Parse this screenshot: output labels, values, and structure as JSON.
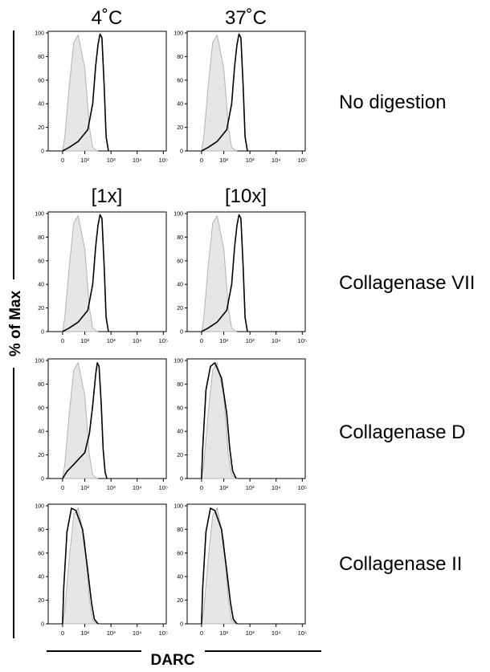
{
  "figure": {
    "column_headers": [
      "4˚C",
      "37˚C"
    ],
    "subheaders": [
      "[1x]",
      "[10x]"
    ],
    "y_axis_label": "% of Max",
    "x_axis_label": "DARC",
    "row_labels": [
      "No digestion",
      "Collagenase VII",
      "Collagenase D",
      "Collagenase II"
    ],
    "colors": {
      "control_fill": "#e6e6e6",
      "control_line": "#b3b3b3",
      "stain_line": "#000000"
    }
  },
  "chart_data": [
    {
      "type": "histogram",
      "row": "No digestion",
      "column": "4˚C",
      "xscale": "biexponential",
      "xticks": [
        "0",
        "10²",
        "10³",
        "10⁴",
        "10⁵"
      ],
      "yticks": [
        "0",
        "20",
        "40",
        "60",
        "80",
        "100"
      ],
      "ylim": [
        0,
        100
      ],
      "series": [
        {
          "role": "control",
          "values": [
            [
              0,
              0
            ],
            [
              10,
              12
            ],
            [
              30,
              55
            ],
            [
              50,
              92
            ],
            [
              70,
              98
            ],
            [
              100,
              70
            ],
            [
              150,
              20
            ],
            [
              200,
              3
            ],
            [
              300,
              0
            ]
          ]
        },
        {
          "role": "stain",
          "values": [
            [
              0,
              0
            ],
            [
              30,
              3
            ],
            [
              70,
              8
            ],
            [
              130,
              18
            ],
            [
              200,
              40
            ],
            [
              260,
              72
            ],
            [
              320,
              90
            ],
            [
              380,
              99
            ],
            [
              450,
              96
            ],
            [
              550,
              55
            ],
            [
              650,
              12
            ],
            [
              800,
              0
            ]
          ]
        }
      ]
    },
    {
      "type": "histogram",
      "row": "No digestion",
      "column": "37˚C",
      "xscale": "biexponential",
      "xticks": [
        "0",
        "10²",
        "10³",
        "10⁴",
        "10⁵"
      ],
      "yticks": [
        "0",
        "20",
        "40",
        "60",
        "80",
        "100"
      ],
      "ylim": [
        0,
        100
      ],
      "series": [
        {
          "role": "control",
          "values": [
            [
              0,
              0
            ],
            [
              10,
              12
            ],
            [
              30,
              55
            ],
            [
              50,
              92
            ],
            [
              70,
              98
            ],
            [
              100,
              70
            ],
            [
              150,
              20
            ],
            [
              200,
              3
            ],
            [
              300,
              0
            ]
          ]
        },
        {
          "role": "stain",
          "values": [
            [
              0,
              0
            ],
            [
              30,
              3
            ],
            [
              70,
              8
            ],
            [
              130,
              18
            ],
            [
              200,
              40
            ],
            [
              260,
              72
            ],
            [
              320,
              90
            ],
            [
              380,
              99
            ],
            [
              450,
              96
            ],
            [
              550,
              55
            ],
            [
              650,
              12
            ],
            [
              800,
              0
            ]
          ]
        }
      ]
    },
    {
      "type": "histogram",
      "row": "Collagenase VII",
      "column": "[1x]",
      "xscale": "biexponential",
      "xticks": [
        "0",
        "10²",
        "10³",
        "10⁴",
        "10⁵"
      ],
      "yticks": [
        "0",
        "20",
        "40",
        "60",
        "80",
        "100"
      ],
      "ylim": [
        0,
        100
      ],
      "series": [
        {
          "role": "control",
          "values": [
            [
              0,
              0
            ],
            [
              10,
              12
            ],
            [
              30,
              55
            ],
            [
              50,
              92
            ],
            [
              70,
              98
            ],
            [
              100,
              70
            ],
            [
              150,
              20
            ],
            [
              200,
              3
            ],
            [
              300,
              0
            ]
          ]
        },
        {
          "role": "stain",
          "values": [
            [
              0,
              0
            ],
            [
              30,
              3
            ],
            [
              70,
              8
            ],
            [
              130,
              18
            ],
            [
              200,
              40
            ],
            [
              260,
              72
            ],
            [
              320,
              90
            ],
            [
              380,
              99
            ],
            [
              450,
              96
            ],
            [
              550,
              55
            ],
            [
              650,
              12
            ],
            [
              800,
              0
            ]
          ]
        }
      ]
    },
    {
      "type": "histogram",
      "row": "Collagenase VII",
      "column": "[10x]",
      "xscale": "biexponential",
      "xticks": [
        "0",
        "10²",
        "10³",
        "10⁴",
        "10⁵"
      ],
      "yticks": [
        "0",
        "20",
        "40",
        "60",
        "80",
        "100"
      ],
      "ylim": [
        0,
        100
      ],
      "series": [
        {
          "role": "control",
          "values": [
            [
              0,
              0
            ],
            [
              10,
              12
            ],
            [
              30,
              55
            ],
            [
              50,
              92
            ],
            [
              70,
              98
            ],
            [
              100,
              70
            ],
            [
              150,
              20
            ],
            [
              200,
              3
            ],
            [
              300,
              0
            ]
          ]
        },
        {
          "role": "stain",
          "values": [
            [
              0,
              0
            ],
            [
              30,
              3
            ],
            [
              70,
              8
            ],
            [
              130,
              18
            ],
            [
              200,
              40
            ],
            [
              260,
              72
            ],
            [
              320,
              90
            ],
            [
              380,
              99
            ],
            [
              450,
              96
            ],
            [
              550,
              55
            ],
            [
              650,
              12
            ],
            [
              800,
              0
            ]
          ]
        }
      ]
    },
    {
      "type": "histogram",
      "row": "Collagenase D",
      "column": "[1x]",
      "xscale": "biexponential",
      "xticks": [
        "0",
        "10²",
        "10³",
        "10⁴",
        "10⁵"
      ],
      "yticks": [
        "0",
        "20",
        "40",
        "60",
        "80",
        "100"
      ],
      "ylim": [
        0,
        100
      ],
      "series": [
        {
          "role": "control",
          "values": [
            [
              0,
              0
            ],
            [
              10,
              12
            ],
            [
              30,
              55
            ],
            [
              50,
              92
            ],
            [
              70,
              98
            ],
            [
              100,
              70
            ],
            [
              150,
              20
            ],
            [
              200,
              3
            ],
            [
              300,
              0
            ]
          ]
        },
        {
          "role": "stain",
          "values": [
            [
              0,
              0
            ],
            [
              20,
              6
            ],
            [
              50,
              12
            ],
            [
              100,
              22
            ],
            [
              150,
              38
            ],
            [
              200,
              62
            ],
            [
              260,
              88
            ],
            [
              300,
              98
            ],
            [
              350,
              95
            ],
            [
              420,
              65
            ],
            [
              500,
              25
            ],
            [
              600,
              5
            ],
            [
              700,
              0
            ]
          ]
        }
      ]
    },
    {
      "type": "histogram",
      "row": "Collagenase D",
      "column": "[10x]",
      "xscale": "biexponential",
      "xticks": [
        "0",
        "10²",
        "10³",
        "10⁴",
        "10⁵"
      ],
      "yticks": [
        "0",
        "20",
        "40",
        "60",
        "80",
        "100"
      ],
      "ylim": [
        0,
        100
      ],
      "series": [
        {
          "role": "control",
          "values": [
            [
              0,
              0
            ],
            [
              10,
              12
            ],
            [
              30,
              55
            ],
            [
              50,
              92
            ],
            [
              70,
              98
            ],
            [
              100,
              70
            ],
            [
              150,
              20
            ],
            [
              200,
              3
            ],
            [
              300,
              0
            ]
          ]
        },
        {
          "role": "stain",
          "values": [
            [
              0,
              0
            ],
            [
              5,
              25
            ],
            [
              20,
              75
            ],
            [
              40,
              95
            ],
            [
              60,
              98
            ],
            [
              90,
              85
            ],
            [
              130,
              55
            ],
            [
              170,
              25
            ],
            [
              220,
              6
            ],
            [
              300,
              0
            ]
          ]
        }
      ]
    },
    {
      "type": "histogram",
      "row": "Collagenase II",
      "column": "[1x]",
      "xscale": "biexponential",
      "xticks": [
        "0",
        "10²",
        "10³",
        "10⁴",
        "10⁵"
      ],
      "yticks": [
        "0",
        "20",
        "40",
        "60",
        "80",
        "100"
      ],
      "ylim": [
        0,
        100
      ],
      "series": [
        {
          "role": "control",
          "values": [
            [
              0,
              0
            ],
            [
              10,
              12
            ],
            [
              30,
              55
            ],
            [
              50,
              92
            ],
            [
              70,
              98
            ],
            [
              100,
              70
            ],
            [
              150,
              20
            ],
            [
              200,
              3
            ],
            [
              300,
              0
            ]
          ]
        },
        {
          "role": "stain",
          "values": [
            [
              0,
              0
            ],
            [
              5,
              30
            ],
            [
              20,
              78
            ],
            [
              40,
              98
            ],
            [
              60,
              96
            ],
            [
              90,
              80
            ],
            [
              130,
              45
            ],
            [
              180,
              18
            ],
            [
              230,
              4
            ],
            [
              320,
              0
            ]
          ]
        }
      ]
    },
    {
      "type": "histogram",
      "row": "Collagenase II",
      "column": "[10x]",
      "xscale": "biexponential",
      "xticks": [
        "0",
        "10²",
        "10³",
        "10⁴",
        "10⁵"
      ],
      "yticks": [
        "0",
        "20",
        "40",
        "60",
        "80",
        "100"
      ],
      "ylim": [
        0,
        100
      ],
      "series": [
        {
          "role": "control",
          "values": [
            [
              0,
              0
            ],
            [
              10,
              12
            ],
            [
              30,
              55
            ],
            [
              50,
              92
            ],
            [
              70,
              98
            ],
            [
              100,
              70
            ],
            [
              150,
              20
            ],
            [
              200,
              3
            ],
            [
              300,
              0
            ]
          ]
        },
        {
          "role": "stain",
          "values": [
            [
              0,
              0
            ],
            [
              5,
              30
            ],
            [
              20,
              78
            ],
            [
              40,
              98
            ],
            [
              60,
              96
            ],
            [
              90,
              80
            ],
            [
              130,
              45
            ],
            [
              180,
              18
            ],
            [
              230,
              4
            ],
            [
              320,
              0
            ]
          ]
        }
      ]
    }
  ]
}
